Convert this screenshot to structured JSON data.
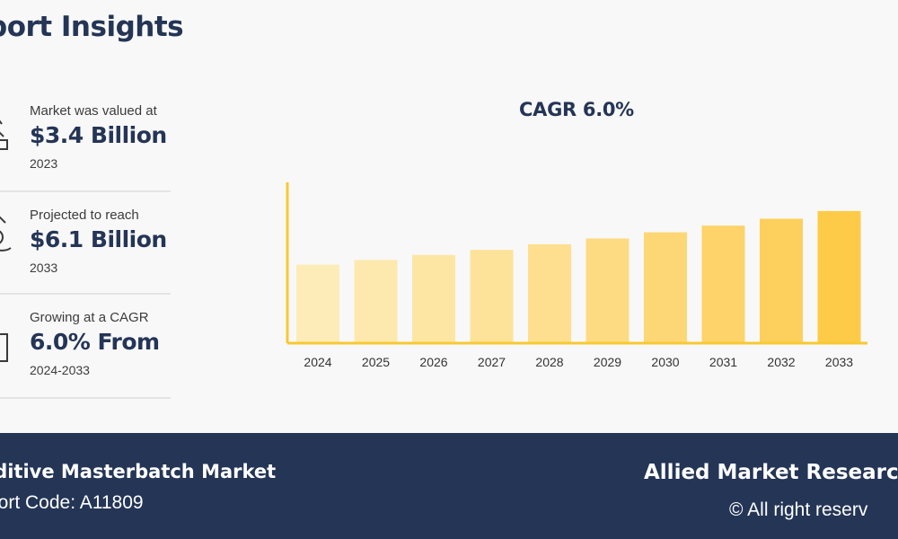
{
  "header": {
    "title": "port Insights"
  },
  "stats": [
    {
      "label": "Market was valued at",
      "value": "$3.4 Billion",
      "year": "2023",
      "icon": "money-hand-icon"
    },
    {
      "label": "Projected to reach",
      "value": "$6.1 Billion",
      "year": "2033",
      "icon": "coin-growth-icon"
    },
    {
      "label": "Growing at a CAGR",
      "value": "6.0% From",
      "year": "2024-2033",
      "icon": "growth-chart-icon"
    }
  ],
  "chart_data": {
    "type": "bar",
    "title": "CAGR 6.0%",
    "categories": [
      "2024",
      "2025",
      "2026",
      "2027",
      "2028",
      "2029",
      "2030",
      "2031",
      "2032",
      "2033"
    ],
    "values": [
      3.6,
      3.82,
      4.05,
      4.29,
      4.55,
      4.82,
      5.11,
      5.42,
      5.74,
      6.1
    ],
    "ylim": [
      0,
      7.5
    ],
    "grid": false,
    "legend": "none",
    "colors": [
      "#fdecb7",
      "#fde9ae",
      "#fde6a4",
      "#fde39a",
      "#fddf8f",
      "#fddb83",
      "#fdd776",
      "#fdd36a",
      "#fdcf5c",
      "#fdcb47"
    ],
    "axis_color": "#f7c932"
  },
  "footer": {
    "market": "lditive Masterbatch Market",
    "report_code": "port Code: A11809",
    "brand": "Allied Market Researc",
    "rights": "© All right reserv"
  }
}
